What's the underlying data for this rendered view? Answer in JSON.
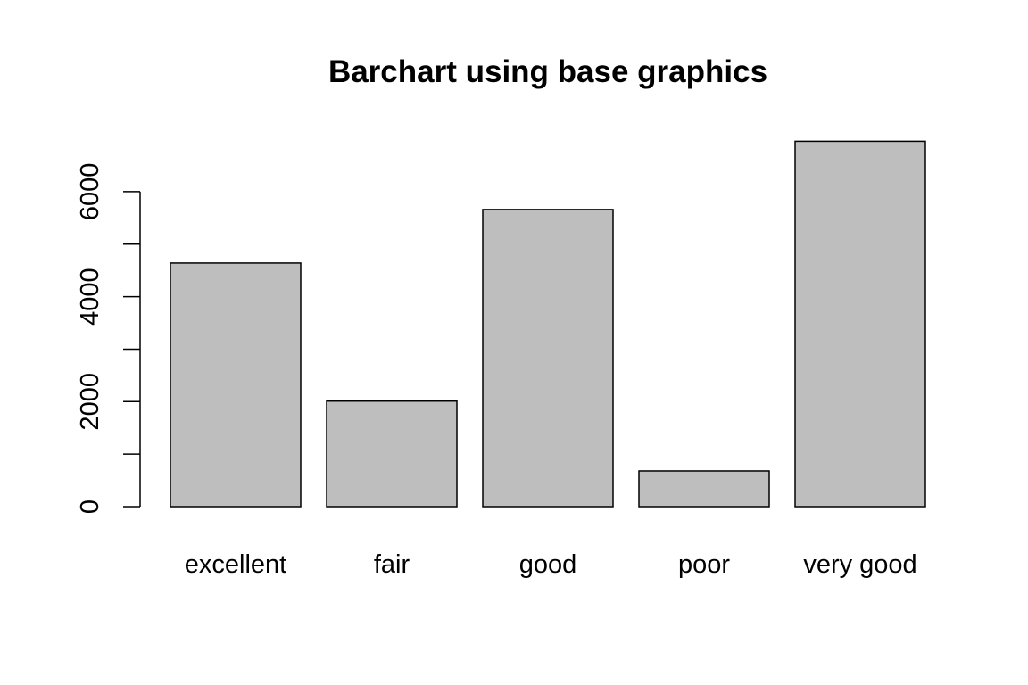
{
  "chart_data": {
    "type": "bar",
    "title": "Barchart using base graphics",
    "xlabel": "",
    "ylabel": "",
    "categories": [
      "excellent",
      "fair",
      "good",
      "poor",
      "very good"
    ],
    "values": [
      4640,
      2010,
      5660,
      680,
      6960
    ],
    "ylim": [
      0,
      7000
    ],
    "yticks": [
      0,
      1000,
      2000,
      3000,
      4000,
      5000,
      6000
    ],
    "ytick_labels": [
      "0",
      "2000",
      "4000",
      "6000"
    ],
    "ytick_label_values": [
      0,
      2000,
      4000,
      6000
    ],
    "grid": false,
    "legend": "none",
    "bar_fill": "#bebebe",
    "bar_stroke": "#000000"
  }
}
